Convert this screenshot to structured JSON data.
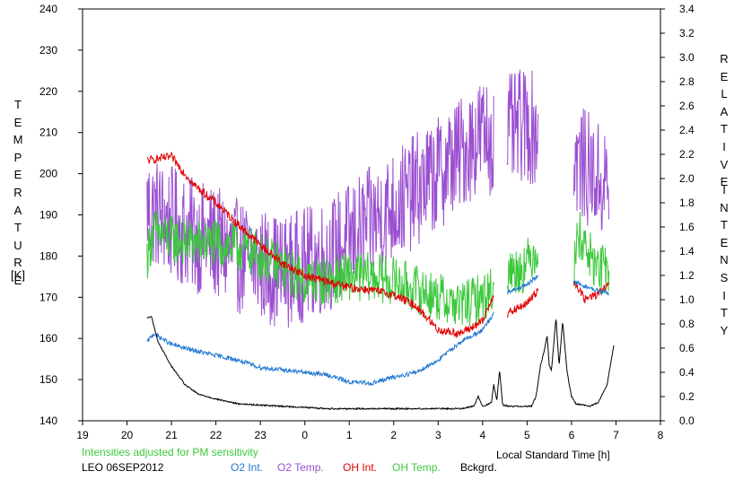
{
  "chart_data": {
    "type": "line",
    "left_axis": {
      "label_letters": [
        "T",
        "E",
        "M",
        "P",
        "E",
        "R",
        "A",
        "T",
        "U",
        "R",
        "E"
      ],
      "unit": "[K]",
      "ylim": [
        140,
        240
      ],
      "ticks": [
        "140",
        "150",
        "160",
        "170",
        "180",
        "190",
        "200",
        "210",
        "220",
        "230",
        "240"
      ]
    },
    "right_axis": {
      "label_word1": [
        "R",
        "E",
        "L",
        "A",
        "T",
        "I",
        "V",
        "E"
      ],
      "label_word2": [
        "I",
        "N",
        "T",
        "E",
        "N",
        "S",
        "I",
        "T",
        "Y"
      ],
      "ylim": [
        0.0,
        3.4
      ],
      "ticks": [
        "0.0",
        "0.2",
        "0.4",
        "0.6",
        "0.8",
        "1.0",
        "1.2",
        "1.4",
        "1.6",
        "1.8",
        "2.0",
        "2.2",
        "2.4",
        "2.6",
        "2.8",
        "3.0",
        "3.2",
        "3.4"
      ]
    },
    "x_axis": {
      "label": "Local Standard Time [h]",
      "ticks": [
        "19",
        "20",
        "21",
        "22",
        "23",
        "0",
        "1",
        "2",
        "3",
        "4",
        "5",
        "6",
        "7",
        "8"
      ],
      "range_hours_after_19": [
        0,
        13
      ]
    },
    "note": "Intensities adjusted for PM sensitivity",
    "station": "LEO 06SEP2012",
    "legend": [
      {
        "name": "O2 Int.",
        "color": "#1e78d2"
      },
      {
        "name": "O2 Temp.",
        "color": "#9b4fd0"
      },
      {
        "name": "OH Int.",
        "color": "#e00000"
      },
      {
        "name": "OH Temp.",
        "color": "#3cc83c"
      },
      {
        "name": "Bckgrd.",
        "color": "#000000"
      }
    ],
    "series": [
      {
        "name": "O2 Temp.",
        "axis": "left",
        "color": "#9b4fd0",
        "noise": 14,
        "segments": [
          [
            20.45,
            4.25
          ],
          [
            4.55,
            5.25
          ],
          [
            6.05,
            6.85
          ]
        ],
        "keypoints": [
          [
            20.45,
            192
          ],
          [
            21.0,
            188
          ],
          [
            21.5,
            185
          ],
          [
            22.0,
            183
          ],
          [
            22.5,
            180
          ],
          [
            23.0,
            178
          ],
          [
            23.5,
            176
          ],
          [
            0.0,
            178
          ],
          [
            0.5,
            180
          ],
          [
            1.0,
            184
          ],
          [
            1.5,
            188
          ],
          [
            2.0,
            192
          ],
          [
            2.5,
            196
          ],
          [
            3.0,
            200
          ],
          [
            3.5,
            205
          ],
          [
            4.0,
            210
          ],
          [
            4.25,
            208
          ],
          [
            4.55,
            210
          ],
          [
            5.0,
            212
          ],
          [
            5.25,
            210
          ],
          [
            6.05,
            204
          ],
          [
            6.5,
            200
          ],
          [
            6.85,
            196
          ]
        ]
      },
      {
        "name": "OH Temp.",
        "axis": "left",
        "color": "#3cc83c",
        "noise": 6,
        "segments": [
          [
            20.45,
            4.25
          ],
          [
            4.55,
            5.25
          ],
          [
            6.05,
            6.85
          ]
        ],
        "keypoints": [
          [
            20.45,
            180
          ],
          [
            20.6,
            186
          ],
          [
            21.0,
            184
          ],
          [
            21.5,
            183
          ],
          [
            22.0,
            183
          ],
          [
            22.5,
            182
          ],
          [
            23.0,
            180
          ],
          [
            23.5,
            177
          ],
          [
            0.0,
            174
          ],
          [
            0.5,
            174
          ],
          [
            1.0,
            175
          ],
          [
            1.5,
            175
          ],
          [
            2.0,
            174
          ],
          [
            2.5,
            172
          ],
          [
            3.0,
            170
          ],
          [
            3.5,
            168
          ],
          [
            4.0,
            170
          ],
          [
            4.25,
            172
          ],
          [
            4.55,
            176
          ],
          [
            4.9,
            177
          ],
          [
            5.25,
            182
          ],
          [
            6.05,
            176
          ],
          [
            6.15,
            186
          ],
          [
            6.5,
            178
          ],
          [
            6.85,
            176
          ]
        ]
      },
      {
        "name": "OH Int.",
        "axis": "right",
        "color": "#e00000",
        "noise": 0.035,
        "segments": [
          [
            20.45,
            4.25
          ],
          [
            4.55,
            5.25
          ],
          [
            6.05,
            6.85
          ]
        ],
        "keypoints": [
          [
            20.45,
            2.15
          ],
          [
            21.0,
            2.18
          ],
          [
            21.5,
            1.95
          ],
          [
            22.0,
            1.8
          ],
          [
            22.5,
            1.62
          ],
          [
            23.0,
            1.45
          ],
          [
            23.5,
            1.3
          ],
          [
            0.0,
            1.2
          ],
          [
            0.5,
            1.15
          ],
          [
            1.0,
            1.1
          ],
          [
            1.5,
            1.08
          ],
          [
            2.0,
            1.04
          ],
          [
            2.5,
            0.95
          ],
          [
            3.0,
            0.75
          ],
          [
            3.5,
            0.72
          ],
          [
            4.0,
            0.82
          ],
          [
            4.25,
            1.05
          ],
          [
            4.55,
            0.88
          ],
          [
            5.0,
            0.97
          ],
          [
            5.25,
            1.08
          ],
          [
            6.05,
            1.16
          ],
          [
            6.3,
            1.0
          ],
          [
            6.6,
            1.05
          ],
          [
            6.85,
            1.12
          ]
        ]
      },
      {
        "name": "O2 Int.",
        "axis": "right",
        "color": "#1e78d2",
        "noise": 0.018,
        "segments": [
          [
            20.45,
            4.25
          ],
          [
            4.55,
            5.25
          ],
          [
            6.05,
            6.85
          ]
        ],
        "keypoints": [
          [
            20.45,
            0.65
          ],
          [
            20.6,
            0.72
          ],
          [
            21.0,
            0.63
          ],
          [
            21.5,
            0.58
          ],
          [
            22.0,
            0.54
          ],
          [
            22.5,
            0.5
          ],
          [
            23.0,
            0.44
          ],
          [
            23.5,
            0.42
          ],
          [
            0.0,
            0.4
          ],
          [
            0.5,
            0.38
          ],
          [
            1.0,
            0.32
          ],
          [
            1.5,
            0.31
          ],
          [
            2.0,
            0.36
          ],
          [
            2.5,
            0.4
          ],
          [
            3.0,
            0.5
          ],
          [
            3.5,
            0.65
          ],
          [
            4.0,
            0.75
          ],
          [
            4.25,
            0.88
          ],
          [
            4.55,
            1.06
          ],
          [
            5.0,
            1.12
          ],
          [
            5.25,
            1.2
          ],
          [
            6.05,
            1.15
          ],
          [
            6.5,
            1.08
          ],
          [
            6.85,
            1.05
          ]
        ]
      },
      {
        "name": "Bckgrd.",
        "axis": "right",
        "color": "#000000",
        "noise": 0.006,
        "segments": [
          [
            20.45,
            6.95
          ]
        ],
        "keypoints": [
          [
            20.45,
            0.85
          ],
          [
            20.55,
            0.86
          ],
          [
            20.7,
            0.65
          ],
          [
            21.0,
            0.45
          ],
          [
            21.3,
            0.3
          ],
          [
            21.6,
            0.22
          ],
          [
            22.0,
            0.18
          ],
          [
            22.5,
            0.14
          ],
          [
            23.0,
            0.13
          ],
          [
            23.5,
            0.12
          ],
          [
            0.0,
            0.11
          ],
          [
            0.5,
            0.1
          ],
          [
            1.0,
            0.1
          ],
          [
            1.5,
            0.1
          ],
          [
            2.0,
            0.1
          ],
          [
            2.5,
            0.1
          ],
          [
            3.0,
            0.1
          ],
          [
            3.5,
            0.1
          ],
          [
            3.8,
            0.12
          ],
          [
            3.9,
            0.2
          ],
          [
            4.0,
            0.12
          ],
          [
            4.2,
            0.15
          ],
          [
            4.25,
            0.3
          ],
          [
            4.32,
            0.17
          ],
          [
            4.38,
            0.42
          ],
          [
            4.45,
            0.13
          ],
          [
            4.6,
            0.12
          ],
          [
            5.0,
            0.12
          ],
          [
            5.1,
            0.12
          ],
          [
            5.2,
            0.2
          ],
          [
            5.3,
            0.45
          ],
          [
            5.4,
            0.6
          ],
          [
            5.45,
            0.7
          ],
          [
            5.5,
            0.45
          ],
          [
            5.55,
            0.42
          ],
          [
            5.65,
            0.85
          ],
          [
            5.72,
            0.45
          ],
          [
            5.8,
            0.82
          ],
          [
            5.9,
            0.4
          ],
          [
            6.0,
            0.2
          ],
          [
            6.1,
            0.14
          ],
          [
            6.4,
            0.12
          ],
          [
            6.6,
            0.15
          ],
          [
            6.8,
            0.3
          ],
          [
            6.95,
            0.62
          ]
        ]
      }
    ],
    "grid": false,
    "legend_placement": "bottom"
  }
}
